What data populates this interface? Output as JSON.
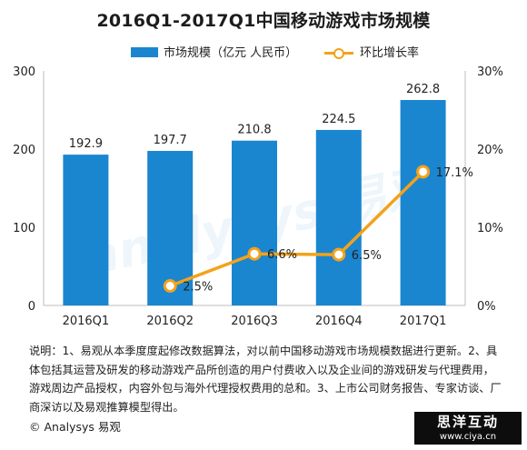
{
  "chart_data": {
    "type": "bar",
    "title": "2016Q1-2017Q1中国移动游戏市场规模",
    "categories": [
      "2016Q1",
      "2016Q2",
      "2016Q3",
      "2016Q4",
      "2017Q1"
    ],
    "series": [
      {
        "name": "市场规模（亿元 人民币）",
        "type": "bar",
        "axis": "left",
        "values": [
          192.9,
          197.7,
          210.8,
          224.5,
          262.8
        ],
        "labels": [
          "192.9",
          "197.7",
          "210.8",
          "224.5",
          "262.8"
        ]
      },
      {
        "name": "环比增长率",
        "type": "line",
        "axis": "right",
        "values": [
          null,
          2.5,
          6.6,
          6.5,
          17.1
        ],
        "labels": [
          "",
          "2.5%",
          "6.6%",
          "6.5%",
          "17.1%"
        ]
      }
    ],
    "y_left": {
      "min": 0,
      "max": 300,
      "ticks": [
        "0",
        "100",
        "200",
        "300"
      ],
      "tick_values": [
        0,
        100,
        200,
        300
      ]
    },
    "y_right": {
      "min": 0,
      "max": 30,
      "ticks": [
        "0%",
        "10%",
        "20%",
        "30%"
      ],
      "tick_values": [
        0,
        10,
        20,
        30
      ]
    },
    "legend_position": "top-center",
    "grid": false,
    "colors": {
      "bar": "#1a86d0",
      "line": "#f3a21b"
    }
  },
  "notes": "说明：1、易观从本季度度起修改数据算法，对以前中国移动游戏市场规模数据进行更新。2、具体包括其运营及研发的移动游戏产品所创造的用户付费收入以及企业间的游戏研发与代理费用，游戏周边产品授权，内容外包与海外代理授权费用的总和。3、上市公司财务报告、专家访谈、厂商深访以及易观推算模型得出。",
  "footer": "© Analysys 易观",
  "stamp": {
    "line1": "思洋互动",
    "line2": "www.ciya.cn"
  },
  "watermark": "analysys 易观"
}
